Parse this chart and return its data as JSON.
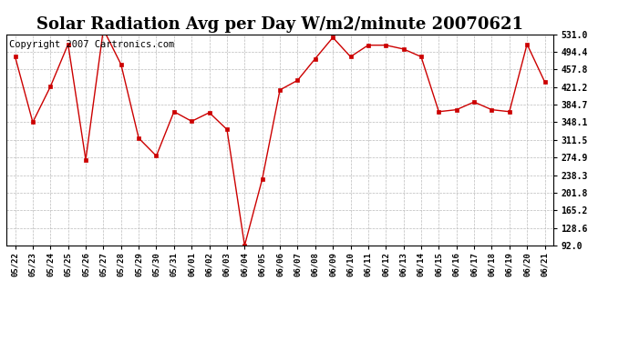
{
  "title": "Solar Radiation Avg per Day W/m2/minute 20070621",
  "copyright": "Copyright 2007 Cartronics.com",
  "dates": [
    "05/22",
    "05/23",
    "05/24",
    "05/25",
    "05/26",
    "05/27",
    "05/28",
    "05/29",
    "05/30",
    "05/31",
    "06/01",
    "06/02",
    "06/03",
    "06/04",
    "06/05",
    "06/06",
    "06/07",
    "06/08",
    "06/09",
    "06/10",
    "06/11",
    "06/12",
    "06/13",
    "06/14",
    "06/15",
    "06/16",
    "06/17",
    "06/18",
    "06/19",
    "06/20",
    "06/21"
  ],
  "values": [
    484,
    348,
    422,
    510,
    270,
    541,
    468,
    315,
    278,
    370,
    350,
    368,
    333,
    92,
    230,
    415,
    435,
    480,
    524,
    484,
    508,
    508,
    500,
    484,
    370,
    374,
    390,
    374,
    370,
    510,
    432
  ],
  "line_color": "#cc0000",
  "marker_color": "#cc0000",
  "bg_color": "#ffffff",
  "grid_color": "#bbbbbb",
  "yticks": [
    92.0,
    128.6,
    165.2,
    201.8,
    238.3,
    274.9,
    311.5,
    348.1,
    384.7,
    421.2,
    457.8,
    494.4,
    531.0
  ],
  "ylim": [
    92.0,
    531.0
  ],
  "title_fontsize": 13,
  "copyright_fontsize": 7.5
}
